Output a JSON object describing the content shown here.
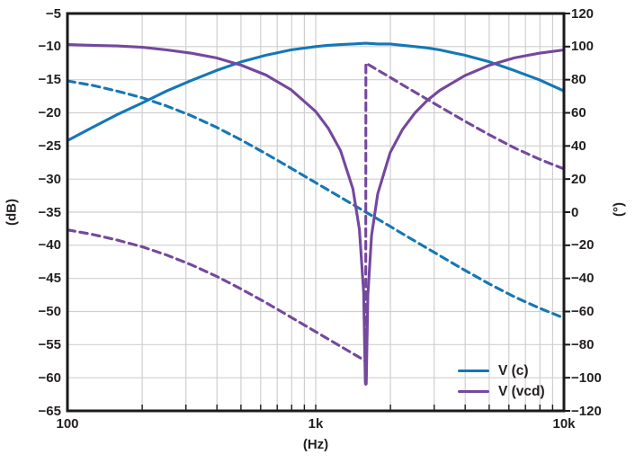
{
  "chart_data": {
    "type": "line",
    "title": "",
    "description": "Bode plot: magnitude (dB, solid) and phase (degrees, dashed) of V(c) band-pass and V(vcd) notch responses vs frequency",
    "grid": true,
    "legend_position": "bottom-right",
    "colors": {
      "blue": "#1577b5",
      "purple": "#74489d",
      "grid": "#cfcfcf",
      "frame": "#1a1a1a",
      "text": "#231f20"
    },
    "x_axis": {
      "label": "(Hz)",
      "scale": "log",
      "min": 100,
      "max": 10000,
      "ticks": [
        {
          "f": 100,
          "label": "100"
        },
        {
          "f": 1000,
          "label": "1k"
        },
        {
          "f": 10000,
          "label": "10k"
        }
      ],
      "minor_gridlines": [
        200,
        300,
        400,
        500,
        600,
        700,
        800,
        900,
        1000,
        2000,
        3000,
        4000,
        5000,
        6000,
        7000,
        8000,
        9000
      ]
    },
    "y_left": {
      "label": "(dB)",
      "min": -65,
      "max": -5,
      "step": 5,
      "ticks": [
        {
          "v": -5,
          "label": "−5"
        },
        {
          "v": -10,
          "label": "−10"
        },
        {
          "v": -15,
          "label": "−15"
        },
        {
          "v": -20,
          "label": "−20"
        },
        {
          "v": -25,
          "label": "−25"
        },
        {
          "v": -30,
          "label": "−30"
        },
        {
          "v": -35,
          "label": "−35"
        },
        {
          "v": -40,
          "label": "−40"
        },
        {
          "v": -45,
          "label": "−45"
        },
        {
          "v": -50,
          "label": "−50"
        },
        {
          "v": -55,
          "label": "−55"
        },
        {
          "v": -60,
          "label": "−60"
        },
        {
          "v": -65,
          "label": "−65"
        }
      ]
    },
    "y_right": {
      "label": "(°)",
      "min": -120,
      "max": 120,
      "step": 20,
      "ticks": [
        {
          "v": 120,
          "label": "120"
        },
        {
          "v": 100,
          "label": "100"
        },
        {
          "v": 80,
          "label": "80"
        },
        {
          "v": 60,
          "label": "60"
        },
        {
          "v": 40,
          "label": "40"
        },
        {
          "v": 20,
          "label": "20"
        },
        {
          "v": 0,
          "label": "0"
        },
        {
          "v": -20,
          "label": "−20"
        },
        {
          "v": -40,
          "label": "−40"
        },
        {
          "v": -60,
          "label": "−60"
        },
        {
          "v": -80,
          "label": "−80"
        },
        {
          "v": -100,
          "label": "−100"
        },
        {
          "v": -120,
          "label": "−120"
        }
      ]
    },
    "legend": [
      {
        "label": "V (c)",
        "color": "#1577b5"
      },
      {
        "label": "V (vcd)",
        "color": "#74489d"
      }
    ],
    "series": [
      {
        "name": "V (c) phase",
        "axis": "right",
        "style": "dashed",
        "color": "#1577b5",
        "points": [
          [
            100,
            79.3
          ],
          [
            126,
            76.6
          ],
          [
            158,
            73.2
          ],
          [
            200,
            69.1
          ],
          [
            251,
            64.1
          ],
          [
            316,
            58.2
          ],
          [
            398,
            51.3
          ],
          [
            501,
            43.6
          ],
          [
            631,
            35.3
          ],
          [
            794,
            26.6
          ],
          [
            1000,
            17.8
          ],
          [
            1122,
            13.4
          ],
          [
            1259,
            9.0
          ],
          [
            1413,
            4.6
          ],
          [
            1591,
            0
          ],
          [
            1778,
            -4.2
          ],
          [
            1995,
            -8.6
          ],
          [
            2239,
            -13.1
          ],
          [
            2512,
            -17.5
          ],
          [
            2818,
            -21.9
          ],
          [
            3162,
            -26.3
          ],
          [
            3981,
            -35.0
          ],
          [
            5012,
            -43.4
          ],
          [
            6310,
            -51.1
          ],
          [
            7943,
            -57.9
          ],
          [
            10000,
            -63.9
          ]
        ]
      },
      {
        "name": "V (vcd) phase",
        "axis": "right",
        "style": "dashed",
        "color": "#74489d",
        "points": [
          [
            100,
            -10.7
          ],
          [
            126,
            -13.4
          ],
          [
            158,
            -16.8
          ],
          [
            200,
            -20.9
          ],
          [
            251,
            -25.9
          ],
          [
            316,
            -31.8
          ],
          [
            398,
            -38.7
          ],
          [
            501,
            -46.4
          ],
          [
            631,
            -54.7
          ],
          [
            794,
            -63.4
          ],
          [
            1000,
            -72.2
          ],
          [
            1122,
            -76.6
          ],
          [
            1259,
            -81.0
          ],
          [
            1413,
            -85.4
          ],
          [
            1500,
            -87.7
          ],
          [
            1560,
            -89.2
          ],
          [
            1590,
            -90.0
          ],
          [
            1593,
            90.0
          ],
          [
            1622,
            89.3
          ],
          [
            1679,
            88.0
          ],
          [
            1778,
            85.8
          ],
          [
            1995,
            81.4
          ],
          [
            2239,
            76.9
          ],
          [
            2512,
            72.5
          ],
          [
            2818,
            68.1
          ],
          [
            3162,
            63.7
          ],
          [
            3981,
            55.0
          ],
          [
            5012,
            46.7
          ],
          [
            6310,
            38.9
          ],
          [
            7943,
            32.1
          ],
          [
            10000,
            26.1
          ]
        ]
      },
      {
        "name": "V (c) magnitude",
        "axis": "left",
        "style": "solid",
        "color": "#1577b5",
        "points": [
          [
            100,
            -24.2
          ],
          [
            126,
            -22.2
          ],
          [
            158,
            -20.3
          ],
          [
            200,
            -18.5
          ],
          [
            251,
            -16.7
          ],
          [
            316,
            -15.1
          ],
          [
            398,
            -13.6
          ],
          [
            501,
            -12.3
          ],
          [
            631,
            -11.3
          ],
          [
            794,
            -10.5
          ],
          [
            1000,
            -10.0
          ],
          [
            1122,
            -9.8
          ],
          [
            1259,
            -9.7
          ],
          [
            1413,
            -9.6
          ],
          [
            1591,
            -9.5
          ],
          [
            1778,
            -9.6
          ],
          [
            1995,
            -9.6
          ],
          [
            2239,
            -9.8
          ],
          [
            2512,
            -10.0
          ],
          [
            2818,
            -10.2
          ],
          [
            3162,
            -10.5
          ],
          [
            3981,
            -11.3
          ],
          [
            5012,
            -12.3
          ],
          [
            6310,
            -13.6
          ],
          [
            7943,
            -15.0
          ],
          [
            10000,
            -16.7
          ]
        ]
      },
      {
        "name": "V (vcd) magnitude",
        "axis": "left",
        "style": "solid",
        "color": "#74489d",
        "points": [
          [
            100,
            -9.7
          ],
          [
            126,
            -9.8
          ],
          [
            158,
            -9.9
          ],
          [
            200,
            -10.1
          ],
          [
            251,
            -10.5
          ],
          [
            316,
            -11.0
          ],
          [
            398,
            -11.7
          ],
          [
            501,
            -12.8
          ],
          [
            631,
            -14.3
          ],
          [
            794,
            -16.5
          ],
          [
            1000,
            -19.8
          ],
          [
            1122,
            -22.3
          ],
          [
            1259,
            -25.7
          ],
          [
            1413,
            -31.5
          ],
          [
            1500,
            -37.6
          ],
          [
            1560,
            -47.1
          ],
          [
            1585,
            -60.8
          ],
          [
            1591,
            -61.0
          ],
          [
            1598,
            -60.9
          ],
          [
            1622,
            -47.5
          ],
          [
            1679,
            -38.5
          ],
          [
            1778,
            -32.2
          ],
          [
            1995,
            -26.0
          ],
          [
            2239,
            -22.5
          ],
          [
            2512,
            -20.0
          ],
          [
            2818,
            -18.1
          ],
          [
            3162,
            -16.6
          ],
          [
            3981,
            -14.4
          ],
          [
            5012,
            -12.8
          ],
          [
            6310,
            -11.7
          ],
          [
            7943,
            -11.0
          ],
          [
            10000,
            -10.5
          ]
        ]
      }
    ]
  }
}
